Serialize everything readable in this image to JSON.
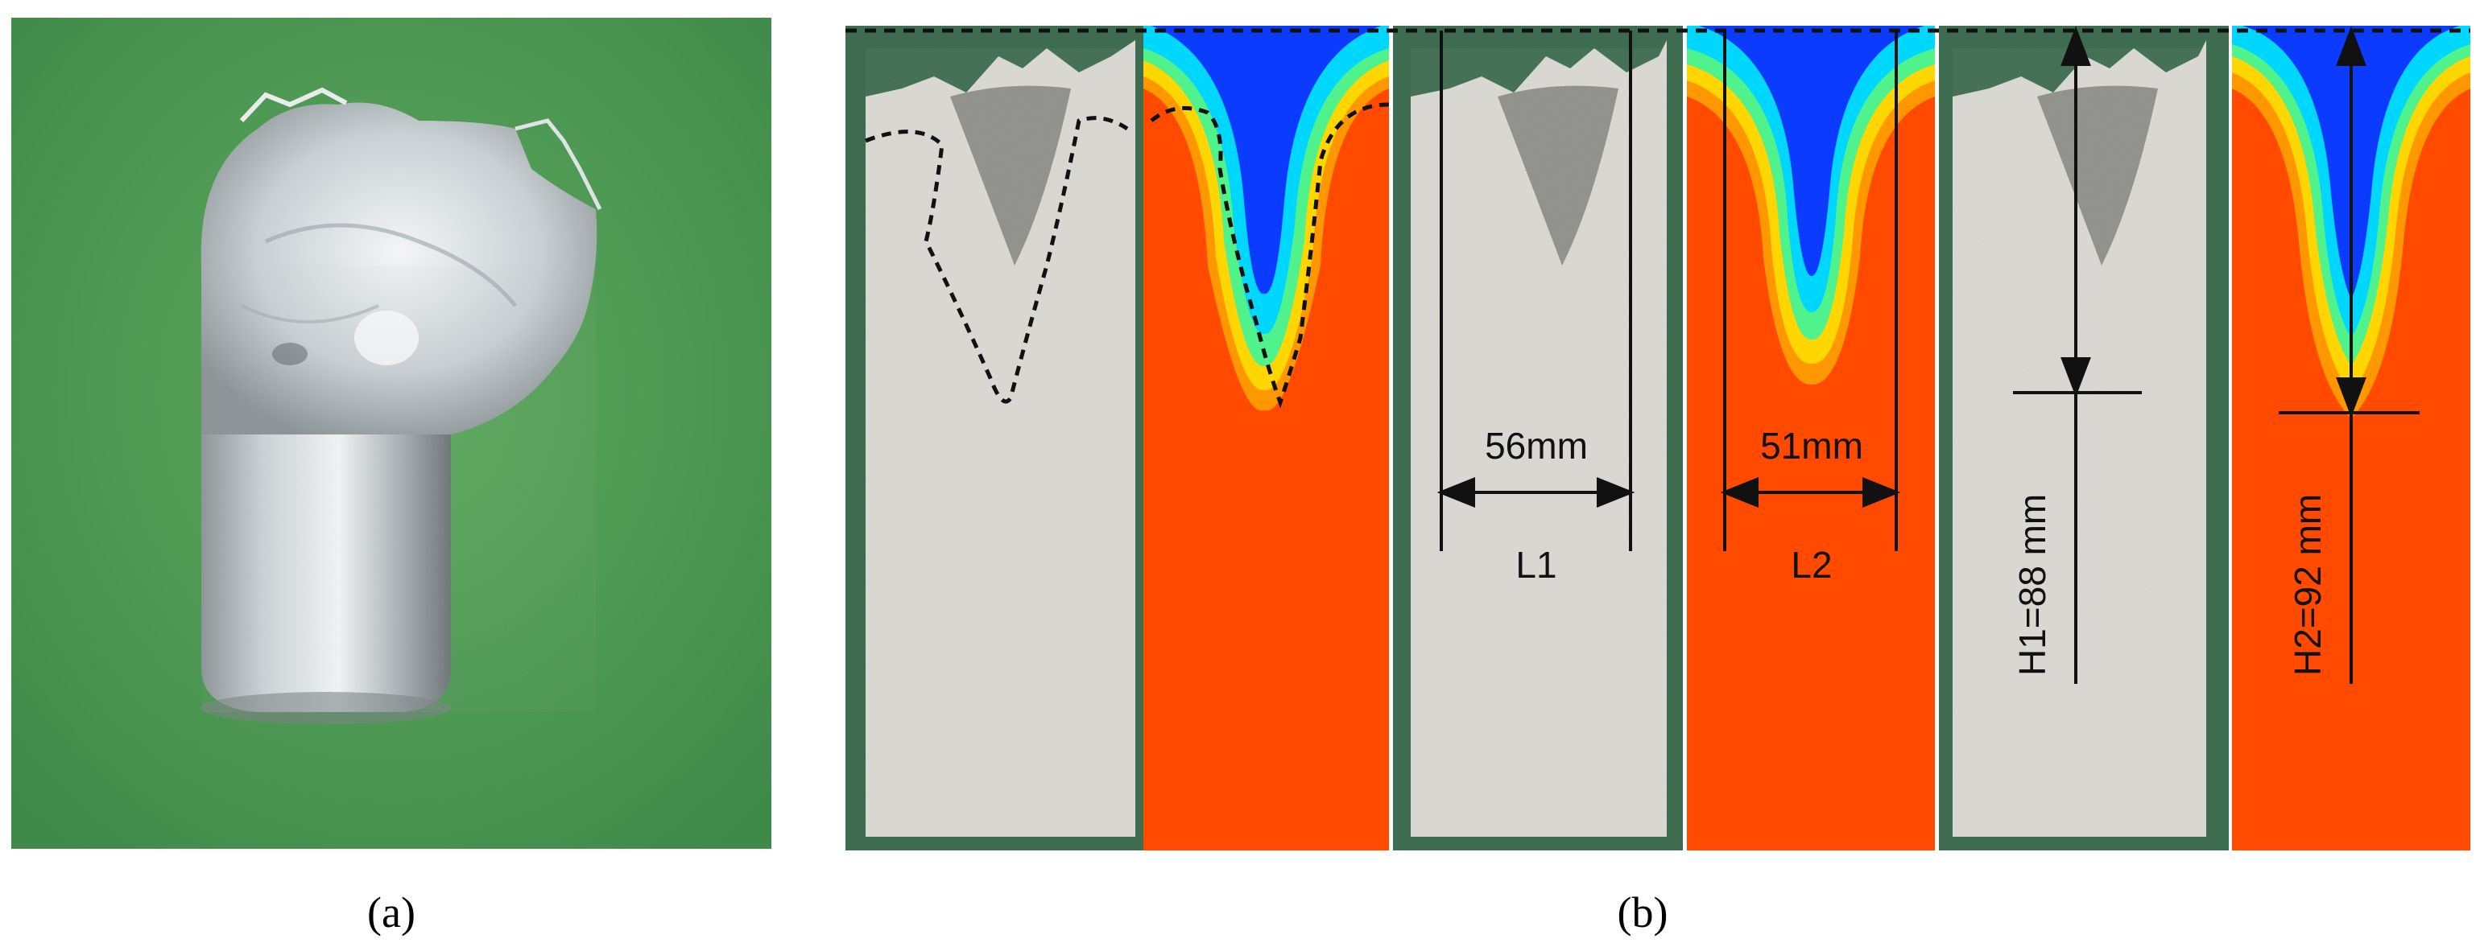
{
  "figure": {
    "panel_a": {
      "caption": "(a)",
      "description_icon": "cast-cylinder-photo"
    },
    "panel_b": {
      "caption": "(b)",
      "measurements": {
        "L1": {
          "value": "56mm",
          "label": "L1"
        },
        "L2": {
          "value": "51mm",
          "label": "L2"
        },
        "H1": {
          "label": "H1=88 mm"
        },
        "H2": {
          "label": "H2=92 mm"
        }
      }
    }
  },
  "colors": {
    "green_background": "#4f9a56",
    "metal": "#d9dad7",
    "sim_solid": "#ff4a00",
    "sim_blue": "#0b3bff",
    "sim_cyan": "#00d7ff",
    "sim_green": "#50f28b",
    "sim_yellow": "#ffd600",
    "sim_orange": "#ff9800"
  }
}
